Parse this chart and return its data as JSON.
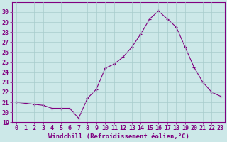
{
  "x": [
    0,
    1,
    2,
    3,
    4,
    5,
    6,
    7,
    8,
    9,
    10,
    11,
    12,
    13,
    14,
    15,
    16,
    17,
    18,
    19,
    20,
    21,
    22,
    23
  ],
  "y": [
    21.0,
    20.9,
    20.8,
    20.7,
    20.4,
    20.4,
    20.4,
    19.4,
    21.4,
    22.3,
    24.4,
    24.8,
    25.5,
    26.5,
    27.8,
    29.3,
    30.1,
    29.3,
    28.5,
    26.5,
    24.5,
    23.0,
    22.0,
    21.6
  ],
  "line_color": "#800080",
  "marker": "+",
  "marker_size": 3,
  "bg_color": "#cce8e8",
  "grid_color": "#a8cccc",
  "ylim": [
    19,
    31
  ],
  "xlim": [
    -0.5,
    23.5
  ],
  "yticks": [
    19,
    20,
    21,
    22,
    23,
    24,
    25,
    26,
    27,
    28,
    29,
    30
  ],
  "xticks": [
    0,
    1,
    2,
    3,
    4,
    5,
    6,
    7,
    8,
    9,
    10,
    11,
    12,
    13,
    14,
    15,
    16,
    17,
    18,
    19,
    20,
    21,
    22,
    23
  ],
  "xlabel": "Windchill (Refroidissement éolien,°C)",
  "xlabel_color": "#800080",
  "tick_color": "#800080",
  "axis_color": "#800080",
  "label_fontsize": 6.5,
  "tick_fontsize": 6.0
}
